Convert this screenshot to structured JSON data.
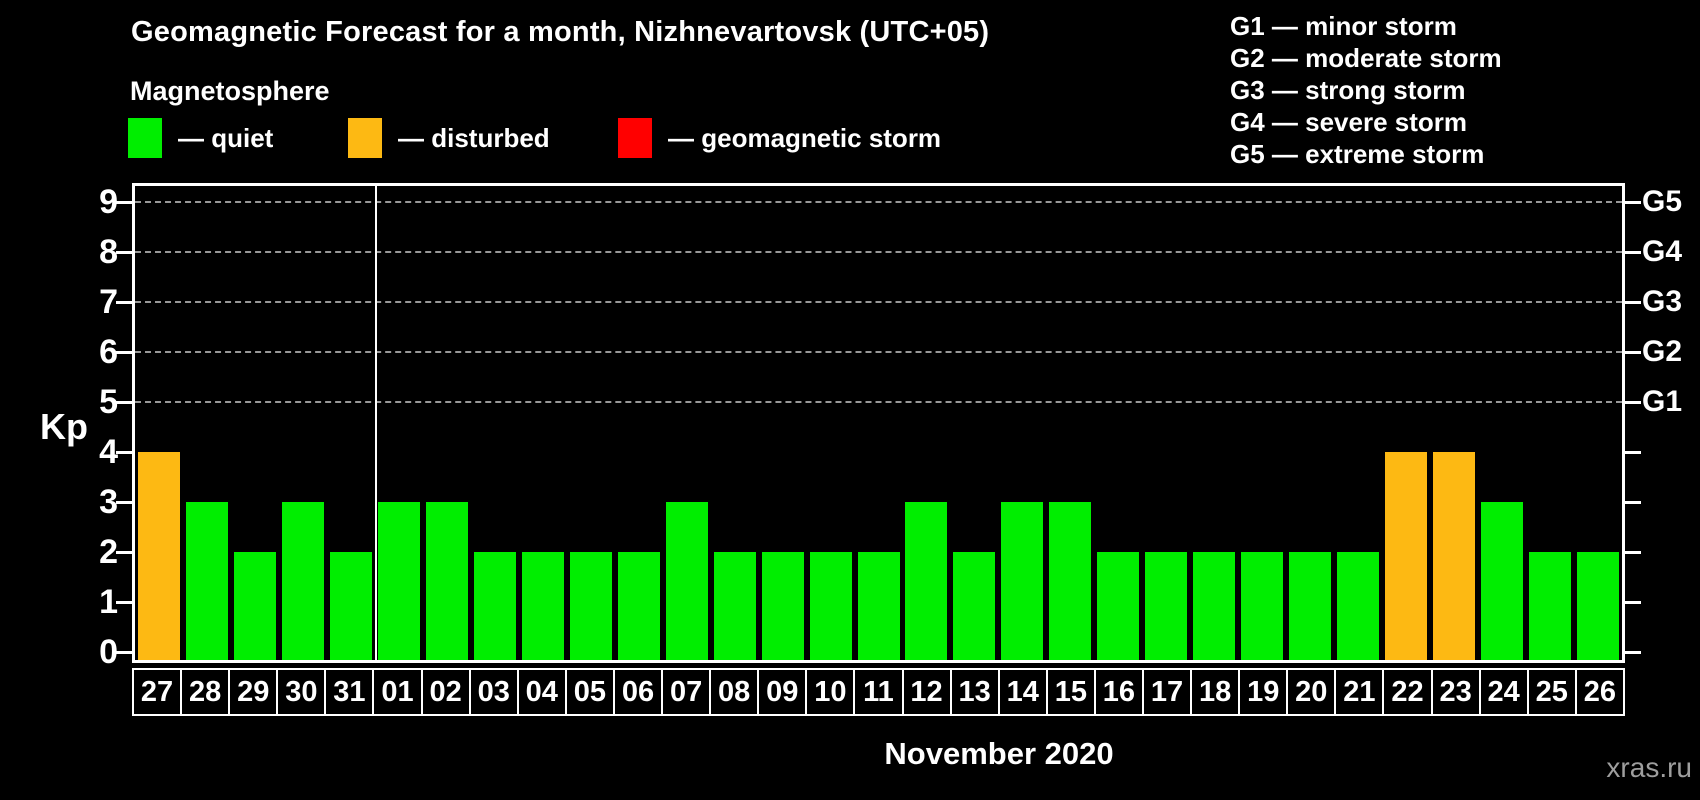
{
  "title": "Geomagnetic Forecast for a month, Nizhnevartovsk (UTC+05)",
  "subtitle": "Magnetosphere",
  "colors": {
    "quiet": "#00ee00",
    "disturbed": "#fdb913",
    "storm": "#ff0000",
    "background": "#000000",
    "axis": "#ffffff",
    "gridline": "#999999",
    "watermark_text": "#9e9e9e"
  },
  "legend": {
    "items": [
      {
        "name": "quiet",
        "label": "— quiet",
        "color": "#00ee00"
      },
      {
        "name": "disturbed",
        "label": "— disturbed",
        "color": "#fdb913"
      },
      {
        "name": "storm",
        "label": "— geomagnetic storm",
        "color": "#ff0000"
      }
    ]
  },
  "g_legend": {
    "lines": [
      "G1 — minor storm",
      "G2 — moderate storm",
      "G3 — strong storm",
      "G4 — severe storm",
      "G5 — extreme storm"
    ]
  },
  "y_axis": {
    "label": "Kp",
    "ticks": [
      0,
      1,
      2,
      3,
      4,
      5,
      6,
      7,
      8,
      9
    ]
  },
  "right_axis": {
    "labels": [
      {
        "text": "G1",
        "kp": 5
      },
      {
        "text": "G2",
        "kp": 6
      },
      {
        "text": "G3",
        "kp": 7
      },
      {
        "text": "G4",
        "kp": 8
      },
      {
        "text": "G5",
        "kp": 9
      }
    ]
  },
  "x_axis": {
    "month_label": "November 2020"
  },
  "watermark": "xras.ru",
  "chart_data": {
    "type": "bar",
    "title": "Geomagnetic Forecast for a month, Nizhnevartovsk (UTC+05)",
    "xlabel": "November 2020",
    "ylabel": "Kp",
    "ylim": [
      0,
      9
    ],
    "grid": "dashed horizontal at Kp 5-9 only",
    "legend_position": "top",
    "categories": [
      "27",
      "28",
      "29",
      "30",
      "31",
      "01",
      "02",
      "03",
      "04",
      "05",
      "06",
      "07",
      "08",
      "09",
      "10",
      "11",
      "12",
      "13",
      "14",
      "15",
      "16",
      "17",
      "18",
      "19",
      "20",
      "21",
      "22",
      "23",
      "24",
      "25",
      "26"
    ],
    "values": [
      4,
      3,
      2,
      3,
      2,
      3,
      3,
      2,
      2,
      2,
      2,
      3,
      2,
      2,
      2,
      2,
      3,
      2,
      3,
      3,
      2,
      2,
      2,
      2,
      2,
      2,
      4,
      4,
      3,
      2,
      2
    ],
    "statuses": [
      "disturbed",
      "quiet",
      "quiet",
      "quiet",
      "quiet",
      "quiet",
      "quiet",
      "quiet",
      "quiet",
      "quiet",
      "quiet",
      "quiet",
      "quiet",
      "quiet",
      "quiet",
      "quiet",
      "quiet",
      "quiet",
      "quiet",
      "quiet",
      "quiet",
      "quiet",
      "quiet",
      "quiet",
      "quiet",
      "quiet",
      "disturbed",
      "disturbed",
      "quiet",
      "quiet",
      "quiet"
    ],
    "month_separator_after_index": 4,
    "gridlines_at_kp": [
      5,
      6,
      7,
      8,
      9
    ]
  }
}
